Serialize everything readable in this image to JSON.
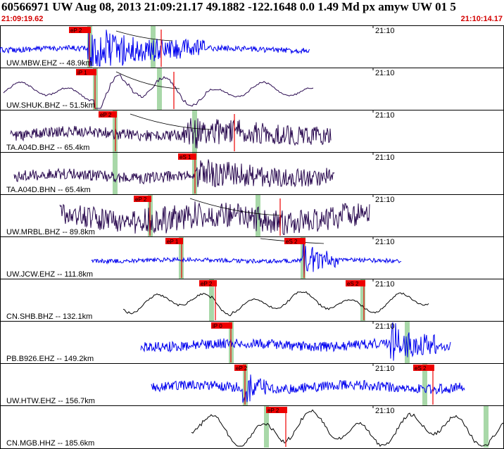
{
  "header": {
    "title": "60566971 UW Aug 08, 2013 21:09:21.17    49.1882 -122.1648  0.0 1.49 Md px amyw UW 01   5",
    "start_time": "21:09:19.62",
    "end_time": "21:10:14.17"
  },
  "time_tick_label": "21:10",
  "colors": {
    "blue_trace": "#0000ee",
    "purple_trace": "#2a0a50",
    "black_trace": "#000000",
    "pick": "#ee0000",
    "window": "#a8d8a8",
    "divider": "#000000"
  },
  "traces": [
    {
      "label": "UW.MBW.EHZ -- 48.9km",
      "color": "blue",
      "start": 0,
      "end": 440,
      "amp": 4,
      "burst": [
        125,
        290,
        26
      ],
      "smooth": false,
      "windows": [
        127,
        217
      ],
      "picks": [
        {
          "x": 127,
          "label": "eP 2",
          "tag": 98
        },
        {
          "x": 229,
          "label": "",
          "tag": null
        }
      ],
      "curve": [
        165,
        8,
        245,
        22
      ]
    },
    {
      "label": "UW.SHUK.BHZ -- 51.5km",
      "color": "purple",
      "start": 5,
      "end": 445,
      "amp": 10,
      "burst": [
        135,
        300,
        18
      ],
      "smooth": true,
      "windows": [
        135,
        226
      ],
      "picks": [
        {
          "x": 135,
          "label": "iP 1",
          "tag": 108
        },
        {
          "x": 247,
          "label": "",
          "tag": null
        }
      ],
      "curve": [
        165,
        6,
        255,
        30
      ]
    },
    {
      "label": "TA.A04D.BHZ -- 65.4km",
      "color": "purple",
      "start": 15,
      "end": 470,
      "amp": 8,
      "burst": [
        260,
        470,
        14
      ],
      "smooth": false,
      "windows": [
        163,
        276
      ],
      "picks": [
        {
          "x": 164,
          "label": "eP 2",
          "tag": 140
        },
        {
          "x": 333,
          "label": "",
          "tag": null
        }
      ],
      "curve": [
        185,
        6,
        300,
        28
      ]
    },
    {
      "label": "TA.A04D.BHN -- 65.4km",
      "color": "purple",
      "start": 20,
      "end": 475,
      "amp": 8,
      "burst": [
        280,
        475,
        12
      ],
      "smooth": false,
      "windows": [
        163,
        276
      ],
      "picks": [
        {
          "x": 277,
          "label": "eS 1",
          "tag": 253
        }
      ],
      "curve": null
    },
    {
      "label": "UW.MRBL.BHZ -- 89.8km",
      "color": "purple",
      "start": 85,
      "end": 525,
      "amp": 16,
      "burst": [
        190,
        520,
        4
      ],
      "smooth": false,
      "windows": [
        213,
        366
      ],
      "picks": [
        {
          "x": 213,
          "label": "eP 2",
          "tag": 190
        },
        {
          "x": 398,
          "label": "",
          "tag": null
        }
      ],
      "curve": [
        270,
        6,
        400,
        30
      ]
    },
    {
      "label": "UW.JCW.EHZ -- 111.8km",
      "color": "blue",
      "start": 130,
      "end": 570,
      "amp": 3,
      "burst": [
        430,
        480,
        22
      ],
      "smooth": false,
      "windows": [
        257,
        430
      ],
      "picks": [
        {
          "x": 258,
          "label": "eP 1",
          "tag": 235
        },
        {
          "x": 432,
          "label": "eS 2",
          "tag": 404
        }
      ],
      "curve": [
        370,
        3,
        460,
        10
      ]
    },
    {
      "label": "CN.SHB.BHZ -- 132.1km",
      "color": "black",
      "start": 175,
      "end": 610,
      "amp": 12,
      "burst": [
        300,
        330,
        6
      ],
      "smooth": true,
      "windows": [
        300,
        515
      ],
      "picks": [
        {
          "x": 306,
          "label": "eP 2",
          "tag": 283
        },
        {
          "x": 517,
          "label": "eS 2",
          "tag": 491
        }
      ],
      "curve": null
    },
    {
      "label": "PB.B926.EHZ -- 149.2km",
      "color": "blue",
      "start": 200,
      "end": 640,
      "amp": 7,
      "burst": [
        555,
        620,
        22
      ],
      "smooth": false,
      "windows": [
        328,
        578
      ],
      "picks": [
        {
          "x": 328,
          "label": "iP 0",
          "tag": 300
        }
      ],
      "curve": null
    },
    {
      "label": "UW.HTW.EHZ -- 156.7km",
      "color": "blue",
      "start": 215,
      "end": 660,
      "amp": 7,
      "burst": [
        345,
        380,
        20
      ],
      "smooth": false,
      "windows": [
        348,
        603
      ],
      "picks": [
        {
          "x": 348,
          "label": "eP 2",
          "tag": 333
        },
        {
          "x": 615,
          "label": "eS 2",
          "tag": 587
        }
      ],
      "curve": null
    },
    {
      "label": "CN.MGB.HHZ -- 185.6km",
      "color": "black",
      "start": 272,
      "end": 716,
      "amp": 20,
      "burst": [
        395,
        420,
        8
      ],
      "smooth": true,
      "windows": [
        378,
        690
      ],
      "picks": [
        {
          "x": 406,
          "label": "eP 2",
          "tag": 378
        }
      ],
      "curve": null
    }
  ]
}
